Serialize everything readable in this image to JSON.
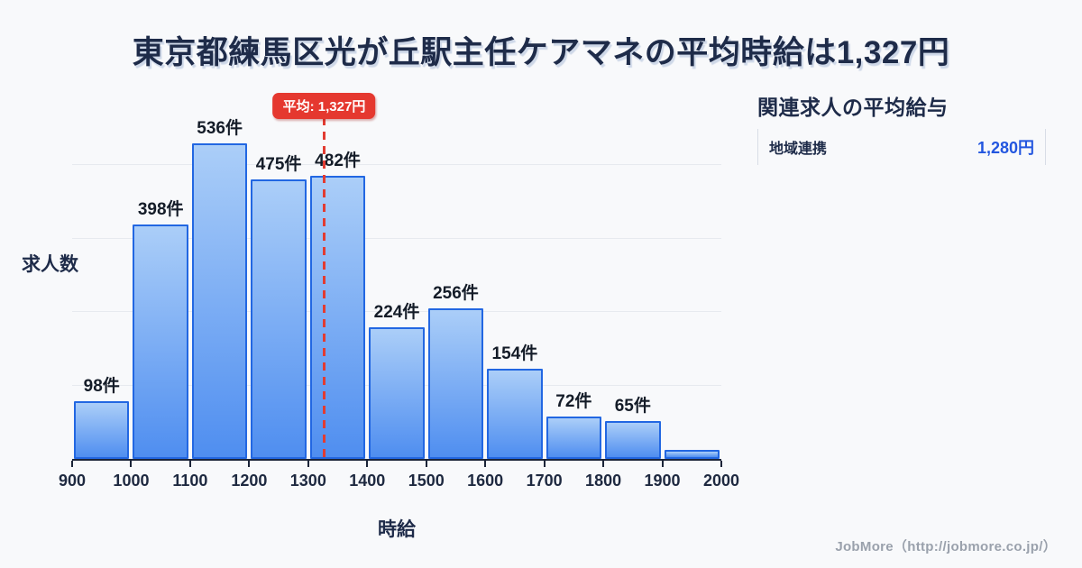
{
  "page": {
    "title": "東京都練馬区光が丘駅主任ケアマネの平均時給は1,327円",
    "footer_credit": "JobMore（http://jobmore.co.jp/）"
  },
  "chart_data": {
    "type": "bar",
    "subtype": "histogram",
    "title": "東京都練馬区光が丘駅主任ケアマネの平均時給は1,327円",
    "xlabel": "時給",
    "ylabel": "求人数",
    "bin_edges": [
      900,
      1000,
      1100,
      1200,
      1300,
      1400,
      1500,
      1600,
      1700,
      1800,
      1900,
      2000
    ],
    "values": [
      98,
      398,
      536,
      475,
      482,
      224,
      256,
      154,
      72,
      65,
      15
    ],
    "bar_labels": [
      "98件",
      "398件",
      "536件",
      "475件",
      "482件",
      "224件",
      "256件",
      "154件",
      "72件",
      "65件",
      ""
    ],
    "x_tick_labels": [
      "900",
      "1000",
      "1100",
      "1200",
      "1300",
      "1400",
      "1500",
      "1600",
      "1700",
      "1800",
      "1900",
      "2000"
    ],
    "x_range": [
      900,
      2000
    ],
    "ylim": [
      0,
      630
    ],
    "grid": true,
    "legend_position": "none",
    "mean": {
      "value": 1327,
      "label": "平均: 1,327円"
    },
    "colors": {
      "bar_fill_top": "#abcef8",
      "bar_fill_bottom": "#4f8ef0",
      "bar_border": "#2267e2",
      "mean_line": "#e23c32",
      "badge_bg": "#e5382f",
      "badge_text": "#ffffff",
      "title_text": "#1e2b49",
      "value_text": "#2356df",
      "background": "#f8f9fb"
    }
  },
  "side_panel": {
    "title": "関連求人の平均給与",
    "rows": [
      {
        "label": "地域連携",
        "value": "1,280円"
      }
    ]
  }
}
